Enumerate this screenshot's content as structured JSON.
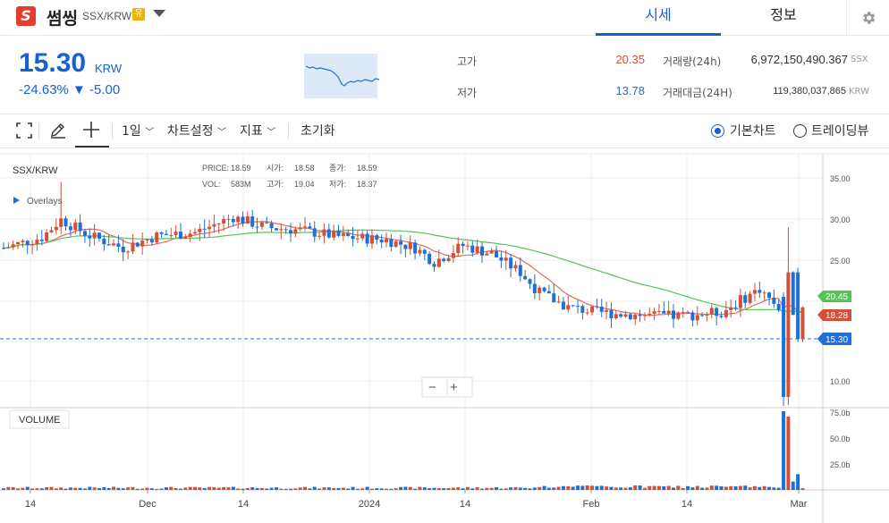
{
  "header": {
    "logo_letter": "S",
    "coin_name": "썸씽",
    "pair": "SSX/KRW",
    "warning_badge": "유",
    "tabs": [
      "시세",
      "정보"
    ]
  },
  "summary": {
    "price": "15.30",
    "unit": "KRW",
    "change": "-24.63% ▼ -5.00",
    "high_label": "고가",
    "high": "20.35",
    "low_label": "저가",
    "low": "13.78",
    "volume_label": "거래량(24h)",
    "volume": "6,972,150,490.367",
    "volume_unit": "SSX",
    "amount_label": "거래대금(24H)",
    "amount": "119,380,037,865",
    "amount_unit": "KRW"
  },
  "toolbar": {
    "interval": "1일",
    "chart_settings": "차트설정",
    "indicators": "지표",
    "reset": "초기화",
    "basic_chart": "기본차트",
    "tradingview": "트레이딩뷰"
  },
  "legend": {
    "symbol": "SSX/KRW",
    "overlays": "Overlays",
    "price_label": "PRICE:",
    "price": "18.59",
    "open_label": "시가:",
    "open": "18.58",
    "close_label": "종가:",
    "close": "18.59",
    "vol_label": "VOL:",
    "vol": "583M",
    "high_label": "고가:",
    "high": "19.04",
    "low_label": "저가:",
    "low": "18.37"
  },
  "colors": {
    "up": "#d24f38",
    "down": "#1e6fd9",
    "ma_short": "#e26a5c",
    "ma_long": "#55c456",
    "accent": "#1561d0"
  },
  "chart_data": {
    "type": "candlestick",
    "y_ticks": [
      "35.00",
      "30.00",
      "25.00",
      "10.00"
    ],
    "volume_ticks": [
      "75.0b",
      "50.0b",
      "25.0b"
    ],
    "x_ticks": [
      "14",
      "Dec",
      "14",
      "2024",
      "14",
      "Feb",
      "14",
      "Mar"
    ],
    "price_badges": [
      {
        "value": "20.45",
        "color": "#55c456"
      },
      {
        "value": "18.28",
        "color": "#d24f38"
      },
      {
        "value": "15.30",
        "color": "#1e6fd9"
      }
    ],
    "volume_panel_label": "VOLUME",
    "zoom": [
      "−",
      "+"
    ]
  }
}
